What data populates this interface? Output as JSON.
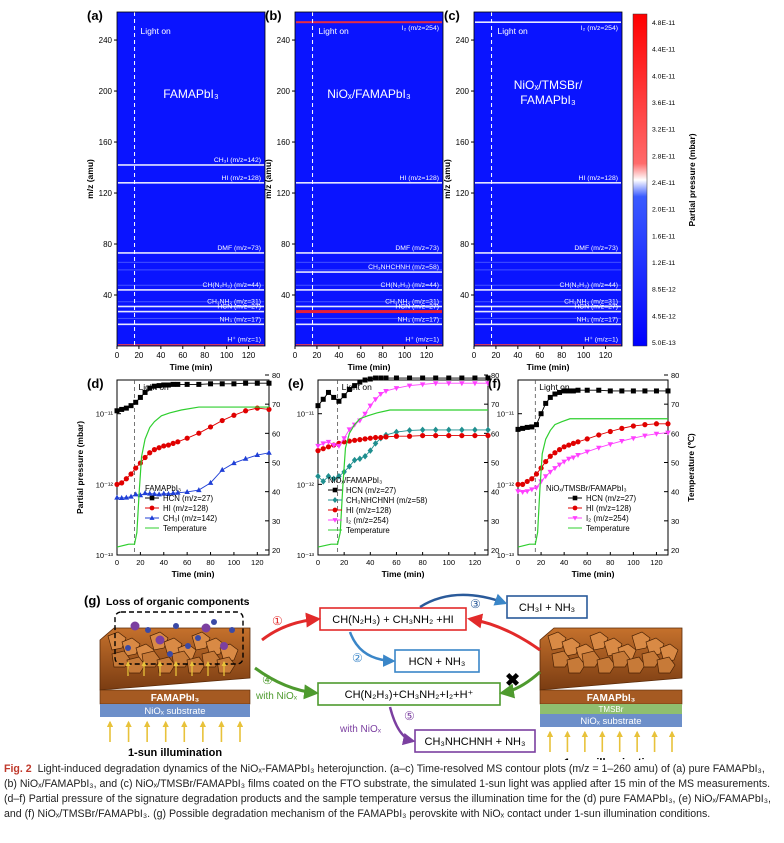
{
  "colors": {
    "accent": "#c0392b",
    "blue": "#0000ff",
    "white": "#ffffff",
    "red_arrow": "#e22a2a",
    "blue_arrow": "#3a86c8",
    "green_arrow": "#4e9a2e",
    "purple_arrow": "#7b3fa0",
    "substrate": "#6d8fc9",
    "tmsbr": "#8fbf6f"
  },
  "mapA": {
    "letter": "(a)",
    "label": "FAMAPbI₃",
    "light": "Light on",
    "peaks": [
      {
        "mz": 142,
        "label": "CH₃I (m/z=142)"
      },
      {
        "mz": 128,
        "label": "HI (m/z=128)"
      },
      {
        "mz": 73,
        "label": "DMF (m/z=73)"
      },
      {
        "mz": 44,
        "label": "CH(N₂H₃) (m/z=44)"
      },
      {
        "mz": 31,
        "label": "CH₃NH₂ (m/z=31)"
      },
      {
        "mz": 27,
        "label": "HCN (m/z=27)"
      },
      {
        "mz": 17,
        "label": "NH₃ (m/z=17)"
      },
      {
        "mz": 1,
        "label": "H⁺ (m/z=1)"
      }
    ]
  },
  "mapB": {
    "letter": "(b)",
    "label": "NiOₓ/FAMAPbI₃",
    "light": "Light on",
    "peaks": [
      {
        "mz": 254,
        "label": "I₂ (m/z=254)"
      },
      {
        "mz": 128,
        "label": "HI (m/z=128)"
      },
      {
        "mz": 73,
        "label": "DMF (m/z=73)"
      },
      {
        "mz": 58,
        "label": "CH₃NHCHNH (m/z=58)"
      },
      {
        "mz": 44,
        "label": "CH(N₂H₃) (m/z=44)"
      },
      {
        "mz": 31,
        "label": "CH₃NH₂ (m/z=31)"
      },
      {
        "mz": 27,
        "label": "HCN (m/z=27)"
      },
      {
        "mz": 17,
        "label": "NH₃ (m/z=17)"
      },
      {
        "mz": 1,
        "label": "H⁺ (m/z=1)"
      }
    ]
  },
  "mapC": {
    "letter": "(c)",
    "label1": "NiOₓ/TMSBr/",
    "label2": "FAMAPbI₃",
    "light": "Light on",
    "peaks": [
      {
        "mz": 254,
        "label": "I₂ (m/z=254)"
      },
      {
        "mz": 128,
        "label": "HI (m/z=128)"
      },
      {
        "mz": 73,
        "label": "DMF (m/z=73)"
      },
      {
        "mz": 44,
        "label": "CH(N₂H₃) (m/z=44)"
      },
      {
        "mz": 31,
        "label": "CH₃NH₂ (m/z=31)"
      },
      {
        "mz": 27,
        "label": "HCN (m/z=27)"
      },
      {
        "mz": 17,
        "label": "NH₃ (m/z=17)"
      },
      {
        "mz": 1,
        "label": "H⁺ (m/z=1)"
      }
    ]
  },
  "map_axes": {
    "ylabel": "m/z (amu)",
    "xlabel": "Time (min)",
    "yticks": [
      "40",
      "80",
      "120",
      "160",
      "200",
      "240"
    ],
    "xticks": [
      "0",
      "20",
      "40",
      "60",
      "80",
      "100",
      "120"
    ]
  },
  "colorbar": {
    "title": "Partial pressure (mbar)",
    "ticks": [
      "4.8E-11",
      "4.4E-11",
      "4.0E-11",
      "3.6E-11",
      "3.2E-11",
      "2.8E-11",
      "2.4E-11",
      "2.0E-11",
      "1.6E-11",
      "1.2E-11",
      "8.5E-12",
      "4.5E-12",
      "5.0E-13"
    ]
  },
  "line_axes": {
    "ylabel_left": "Partial pressure (mbar)",
    "ylabel_right": "Temperature (℃)",
    "xlabel": "Time (min)",
    "xticks": [
      "0",
      "20",
      "40",
      "60",
      "80",
      "100",
      "120"
    ],
    "left_ticks": [
      "10⁻¹¹",
      "10⁻¹²",
      "10⁻¹³"
    ],
    "right_ticks": [
      "80",
      "70",
      "60",
      "50",
      "40",
      "30",
      "20"
    ],
    "light": "Light on"
  },
  "chart_data": [
    {
      "type": "line",
      "panel": "(d)",
      "legend_title": "FAMAPbI₃",
      "ylog": true,
      "ylim": [
        1e-13,
        3e-11
      ],
      "y2lim": [
        20,
        80
      ],
      "xlim": [
        0,
        130
      ],
      "series": [
        {
          "name": "HCN (m/z=27)",
          "marker": "square",
          "color": "#000000",
          "x": [
            0,
            4,
            8,
            12,
            16,
            20,
            24,
            28,
            32,
            36,
            40,
            44,
            48,
            52,
            60,
            70,
            80,
            90,
            100,
            110,
            120,
            130
          ],
          "y": [
            1.1e-11,
            1.15e-11,
            1.2e-11,
            1.3e-11,
            1.45e-11,
            1.7e-11,
            2e-11,
            2.3e-11,
            2.45e-11,
            2.5e-11,
            2.55e-11,
            2.55e-11,
            2.6e-11,
            2.6e-11,
            2.6e-11,
            2.6e-11,
            2.65e-11,
            2.65e-11,
            2.65e-11,
            2.7e-11,
            2.7e-11,
            2.7e-11
          ]
        },
        {
          "name": "HI (m/z=128)",
          "marker": "circle",
          "color": "#e00000",
          "x": [
            0,
            4,
            8,
            12,
            16,
            20,
            24,
            28,
            32,
            36,
            40,
            44,
            48,
            52,
            60,
            70,
            80,
            90,
            100,
            110,
            120,
            130
          ],
          "y": [
            1e-12,
            1.05e-12,
            1.2e-12,
            1.4e-12,
            1.7e-12,
            2e-12,
            2.4e-12,
            2.8e-12,
            3.1e-12,
            3.3e-12,
            3.5e-12,
            3.6e-12,
            3.8e-12,
            4e-12,
            4.5e-12,
            5.3e-12,
            6.5e-12,
            8e-12,
            9.5e-12,
            1.1e-11,
            1.2e-11,
            1.15e-11
          ]
        },
        {
          "name": "CH₃I (m/z=142)",
          "marker": "triangle",
          "color": "#1f3fd6",
          "x": [
            0,
            4,
            8,
            12,
            16,
            20,
            24,
            28,
            32,
            36,
            40,
            44,
            48,
            52,
            60,
            70,
            80,
            90,
            100,
            110,
            120,
            130
          ],
          "y": [
            6.5e-13,
            6.4e-13,
            6.5e-13,
            6.7e-13,
            7.2e-13,
            7e-13,
            7.5e-13,
            7.4e-13,
            7.3e-13,
            7.2e-13,
            7.4e-13,
            7.3e-13,
            7.5e-13,
            7.6e-13,
            7.8e-13,
            8.3e-13,
            1.05e-12,
            1.6e-12,
            2e-12,
            2.3e-12,
            2.6e-12,
            2.8e-12
          ]
        },
        {
          "name": "Temperature",
          "axis": "right",
          "color": "#2fcf2f",
          "x": [
            0,
            10,
            15,
            17,
            19,
            21,
            24,
            28,
            32,
            38,
            45,
            55,
            70,
            90,
            110,
            130
          ],
          "y": [
            21,
            22,
            22,
            26,
            40,
            52,
            58,
            62,
            64,
            66,
            67,
            68,
            69,
            69,
            69,
            69
          ]
        }
      ]
    },
    {
      "type": "line",
      "panel": "(e)",
      "legend_title": "NiOₓ/FAMAPbI₃",
      "ylog": true,
      "ylim": [
        1e-13,
        3e-11
      ],
      "y2lim": [
        20,
        80
      ],
      "xlim": [
        0,
        130
      ],
      "series": [
        {
          "name": "HCN (m/z=27)",
          "marker": "square",
          "color": "#000000",
          "x": [
            0,
            4,
            8,
            12,
            16,
            20,
            24,
            28,
            32,
            36,
            40,
            44,
            48,
            52,
            60,
            70,
            80,
            90,
            100,
            110,
            120,
            130
          ],
          "y": [
            1.3e-11,
            1.6e-11,
            2e-11,
            1.7e-11,
            1.5e-11,
            1.8e-11,
            2.2e-11,
            2.5e-11,
            2.8e-11,
            3e-11,
            3.1e-11,
            3.2e-11,
            3.2e-11,
            3.2e-11,
            3.2e-11,
            3.2e-11,
            3.2e-11,
            3.2e-11,
            3.2e-11,
            3.2e-11,
            3.2e-11,
            3.2e-11
          ]
        },
        {
          "name": "CH₃NHCHNH (m/z=58)",
          "marker": "diamond",
          "color": "#1f8f8f",
          "x": [
            0,
            4,
            8,
            12,
            16,
            20,
            24,
            28,
            32,
            36,
            40,
            44,
            48,
            52,
            60,
            70,
            80,
            90,
            100,
            110,
            120,
            130
          ],
          "y": [
            1.3e-12,
            1.1e-12,
            1.3e-12,
            1.2e-12,
            1.3e-12,
            1.5e-12,
            1.8e-12,
            2.2e-12,
            2.3e-12,
            2.5e-12,
            3e-12,
            3.8e-12,
            4.5e-12,
            5e-12,
            5.5e-12,
            5.8e-12,
            5.9e-12,
            5.9e-12,
            5.9e-12,
            5.9e-12,
            5.9e-12,
            5.9e-12
          ]
        },
        {
          "name": "HI (m/z=128)",
          "marker": "circle",
          "color": "#e00000",
          "x": [
            0,
            4,
            8,
            12,
            16,
            20,
            24,
            28,
            32,
            36,
            40,
            44,
            48,
            52,
            60,
            70,
            80,
            90,
            100,
            110,
            120,
            130
          ],
          "y": [
            3e-12,
            3.2e-12,
            3.4e-12,
            3.6e-12,
            3.8e-12,
            4e-12,
            4.1e-12,
            4.2e-12,
            4.3e-12,
            4.4e-12,
            4.5e-12,
            4.6e-12,
            4.6e-12,
            4.7e-12,
            4.8e-12,
            4.8e-12,
            4.9e-12,
            4.9e-12,
            4.9e-12,
            4.9e-12,
            4.9e-12,
            4.9e-12
          ]
        },
        {
          "name": "I₂ (m/z=254)",
          "marker": "triangle-down",
          "color": "#ff40ff",
          "x": [
            0,
            4,
            8,
            12,
            16,
            20,
            24,
            28,
            32,
            36,
            40,
            44,
            48,
            52,
            60,
            70,
            80,
            90,
            100,
            110,
            120,
            130
          ],
          "y": [
            3.5e-12,
            3.8e-12,
            4e-12,
            3.6e-12,
            3.5e-12,
            4.5e-12,
            6e-12,
            7e-12,
            8e-12,
            1e-11,
            1.3e-11,
            1.6e-11,
            1.9e-11,
            2.1e-11,
            2.3e-11,
            2.5e-11,
            2.6e-11,
            2.7e-11,
            2.7e-11,
            2.7e-11,
            2.7e-11,
            2.7e-11
          ]
        },
        {
          "name": "Temperature",
          "axis": "right",
          "color": "#2fcf2f",
          "x": [
            0,
            10,
            15,
            17,
            19,
            21,
            24,
            28,
            32,
            38,
            45,
            55,
            70,
            90,
            110,
            130
          ],
          "y": [
            21,
            22,
            22,
            26,
            42,
            55,
            60,
            63,
            65,
            66,
            67,
            68,
            68,
            68,
            68,
            68
          ]
        }
      ]
    },
    {
      "type": "line",
      "panel": "(f)",
      "legend_title": "NiOₓ/TMSBr/FAMAPbI₃",
      "ylog": true,
      "ylim": [
        1e-13,
        3e-11
      ],
      "y2lim": [
        20,
        80
      ],
      "xlim": [
        0,
        130
      ],
      "series": [
        {
          "name": "HCN (m/z=27)",
          "marker": "square",
          "color": "#000000",
          "x": [
            0,
            4,
            8,
            12,
            16,
            20,
            24,
            28,
            32,
            36,
            40,
            44,
            48,
            52,
            60,
            70,
            80,
            90,
            100,
            110,
            120,
            130
          ],
          "y": [
            6e-12,
            6.2e-12,
            6.4e-12,
            6.5e-12,
            7e-12,
            1e-11,
            1.4e-11,
            1.7e-11,
            1.9e-11,
            2e-11,
            2.1e-11,
            2.1e-11,
            2.1e-11,
            2.15e-11,
            2.15e-11,
            2.15e-11,
            2.1e-11,
            2.1e-11,
            2.1e-11,
            2.1e-11,
            2.1e-11,
            2.1e-11
          ]
        },
        {
          "name": "HI (m/z=128)",
          "marker": "circle",
          "color": "#e00000",
          "x": [
            0,
            4,
            8,
            12,
            16,
            20,
            24,
            28,
            32,
            36,
            40,
            44,
            48,
            52,
            60,
            70,
            80,
            90,
            100,
            110,
            120,
            130
          ],
          "y": [
            1e-12,
            1e-12,
            1.1e-12,
            1.2e-12,
            1.4e-12,
            1.7e-12,
            2.1e-12,
            2.5e-12,
            2.8e-12,
            3.1e-12,
            3.4e-12,
            3.6e-12,
            3.8e-12,
            4e-12,
            4.4e-12,
            5e-12,
            5.6e-12,
            6.2e-12,
            6.7e-12,
            7e-12,
            7.2e-12,
            7.2e-12
          ]
        },
        {
          "name": "I₂ (m/z=254)",
          "marker": "triangle-down",
          "color": "#ff40ff",
          "x": [
            0,
            4,
            8,
            12,
            16,
            20,
            24,
            28,
            32,
            36,
            40,
            44,
            48,
            52,
            60,
            70,
            80,
            90,
            100,
            110,
            120,
            130
          ],
          "y": [
            8e-13,
            7.8e-13,
            8e-13,
            8.5e-13,
            9e-13,
            1.1e-12,
            1.3e-12,
            1.5e-12,
            1.7e-12,
            1.9e-12,
            2.1e-12,
            2.3e-12,
            2.4e-12,
            2.6e-12,
            2.9e-12,
            3.3e-12,
            3.7e-12,
            4.1e-12,
            4.5e-12,
            4.9e-12,
            5.2e-12,
            5.4e-12
          ]
        },
        {
          "name": "Temperature",
          "axis": "right",
          "color": "#2fcf2f",
          "x": [
            0,
            10,
            15,
            17,
            19,
            21,
            24,
            28,
            32,
            38,
            45,
            55,
            70,
            90,
            110,
            130
          ],
          "y": [
            21,
            22,
            22,
            26,
            41,
            53,
            58,
            61,
            63,
            64,
            65,
            65,
            65,
            65,
            65,
            65
          ]
        }
      ]
    }
  ],
  "mech": {
    "letter": "(g)",
    "title": "Loss of organic components",
    "box1": "CH(N₂H₃) + CH₃NH₂ +HI",
    "box2": "HCN + NH₃",
    "box3": "CH₃I + NH₃",
    "box4": "CH(N₂H₃)+CH₃NH₂+I₂+H⁺",
    "box5": "CH₃NHCHNH + NH₃",
    "n1": "①",
    "n2": "②",
    "n3": "③",
    "n4": "④",
    "n5": "⑤",
    "with_niox": "with NiOₓ",
    "left_film": "FAMAPbI₃",
    "left_sub": "NiOₓ substrate",
    "right_film": "FAMAPbI₃",
    "right_tms": "TMSBr",
    "right_sub": "NiOₓ substrate",
    "illum": "1-sun illumination",
    "cross": "✖"
  },
  "caption": {
    "fig": "Fig. 2",
    "text": "Light-induced degradation dynamics of the NiOₓ-FAMAPbI₃ heterojunction. (a–c) Time-resolved MS contour plots (m/z = 1–260 amu) of (a) pure FAMAPbI₃, (b) NiOₓ/FAMAPbI₃, and (c) NiOₓ/TMSBr/FAMAPbI₃ films coated on the FTO substrate, the simulated 1-sun light was applied after 15 min of the MS measurements. (d–f) Partial pressure of the signature degradation products and the sample temperature versus the illumination time for the (d) pure FAMAPbI₃, (e) NiOₓ/FAMAPbI₃, and (f) NiOₓ/TMSBr/FAMAPbI₃. (g) Possible degradation mechanism of the FAMAPbI₃ perovskite with NiOₓ contact under 1-sun illumination conditions."
  }
}
